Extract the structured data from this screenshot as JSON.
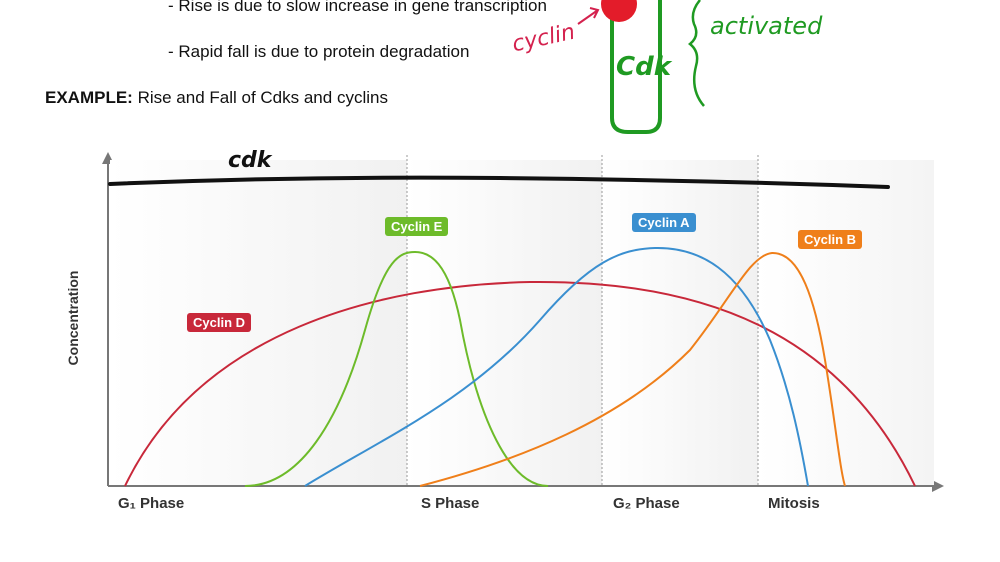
{
  "notes": {
    "bullet_1": "- Rise is due to slow increase in gene transcription",
    "bullet_2": "- Rapid fall is due to protein degradation",
    "example_label": "EXAMPLE:",
    "example_text": " Rise and Fall of Cdks and cyclins"
  },
  "handwriting": {
    "cyclin": "cyclin",
    "cdk_box": "Cdk",
    "activated": "activated",
    "cdk_line": "cdk"
  },
  "colors": {
    "cyclin_d": "#c8283a",
    "cyclin_e": "#6dbb2a",
    "cyclin_a": "#3a8fd0",
    "cyclin_b": "#ef7f1a",
    "ink_green": "#1f9a22",
    "ink_red": "#d4224e"
  },
  "chart_data": {
    "type": "line",
    "ylabel": "Concentration",
    "phases": [
      "G₁ Phase",
      "S Phase",
      "G₂ Phase",
      "Mitosis"
    ],
    "series": [
      {
        "name": "Cyclin D"
      },
      {
        "name": "Cyclin E"
      },
      {
        "name": "Cyclin A"
      },
      {
        "name": "Cyclin B"
      }
    ]
  }
}
